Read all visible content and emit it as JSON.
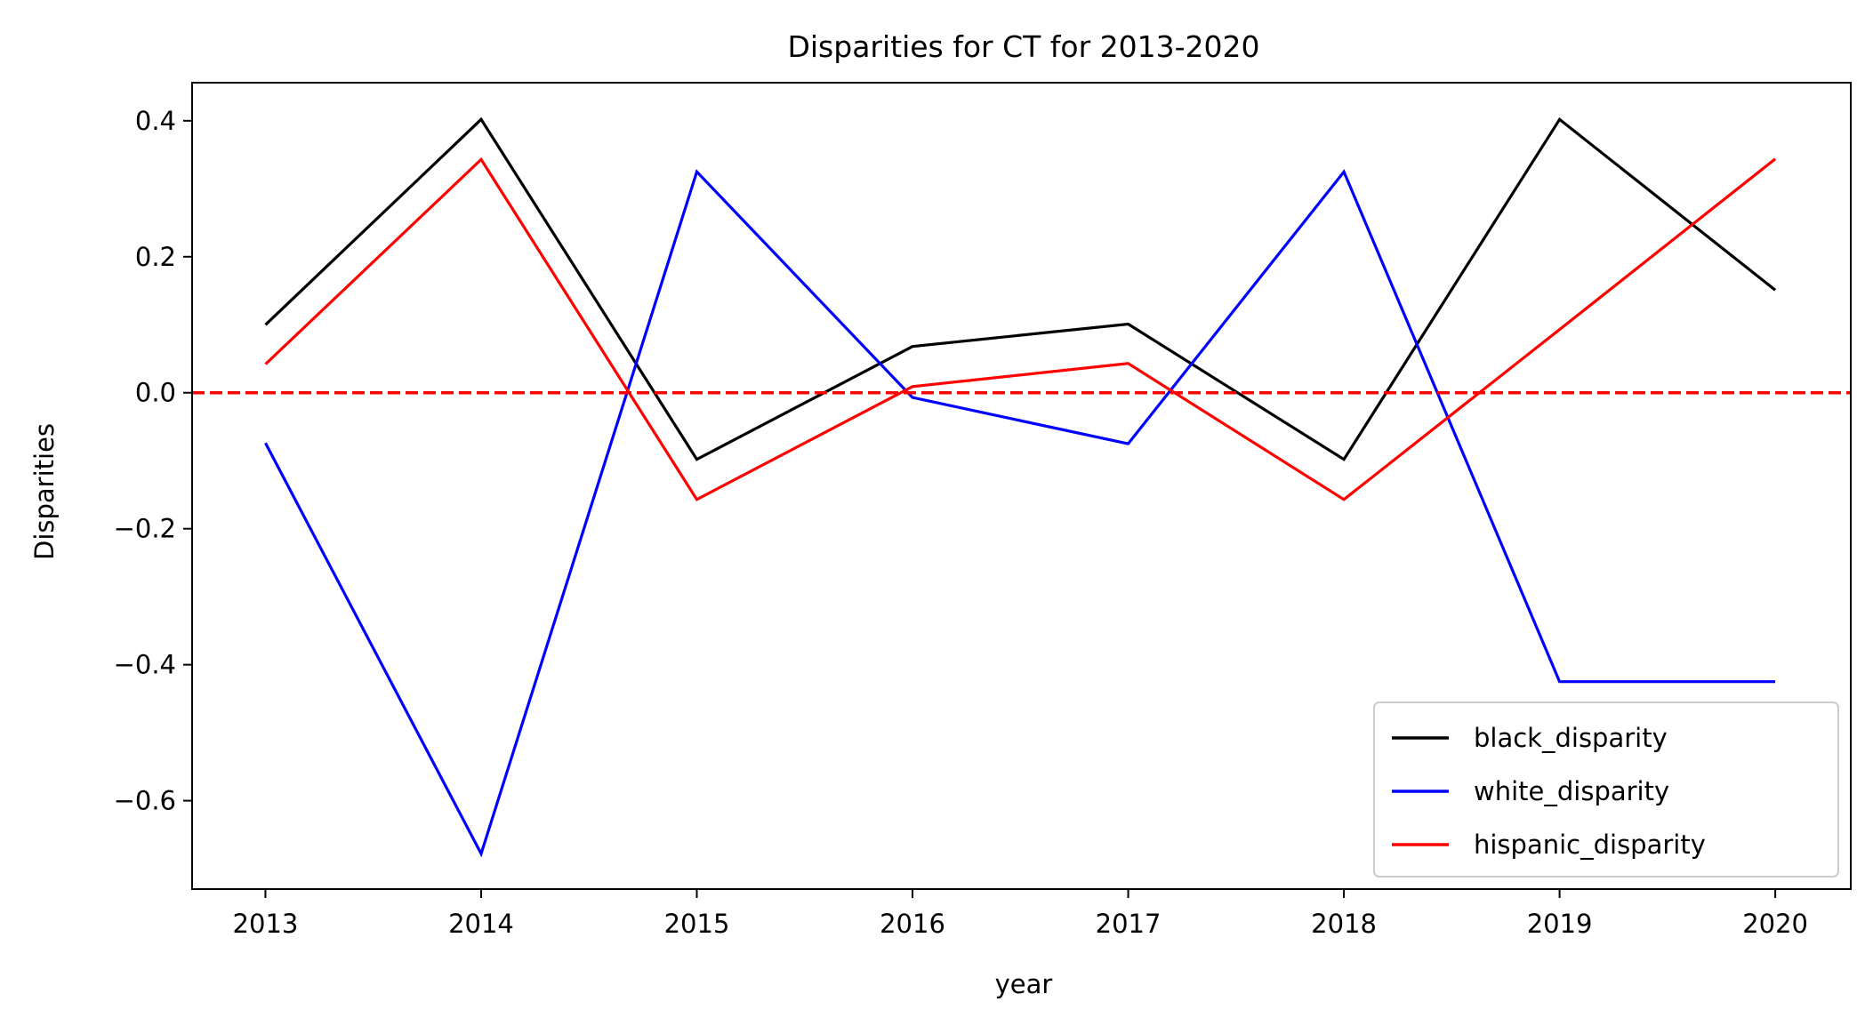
{
  "chart_data": {
    "type": "line",
    "title": "Disparities for CT for 2013-2020",
    "xlabel": "year",
    "ylabel": "Disparities",
    "x": [
      2013,
      2014,
      2015,
      2016,
      2017,
      2018,
      2019,
      2020
    ],
    "xlim": [
      2012.66,
      2020.35
    ],
    "ylim": [
      -0.73,
      0.456
    ],
    "yticks": [
      0.4,
      0.2,
      0.0,
      -0.2,
      -0.4,
      -0.6
    ],
    "ytick_labels": [
      "0.4",
      "0.2",
      "0.0",
      "−0.2",
      "−0.4",
      "−0.6"
    ],
    "xtick_labels": [
      "2013",
      "2014",
      "2015",
      "2016",
      "2017",
      "2018",
      "2019",
      "2020"
    ],
    "grid": false,
    "legend_position": "lower-right",
    "reference_line": {
      "y": 0.0,
      "style": "dashed",
      "color": "#ff0000"
    },
    "series": [
      {
        "name": "black_disparity",
        "color": "#000000",
        "values": [
          0.1,
          0.402,
          -0.098,
          0.068,
          0.101,
          -0.098,
          0.402,
          0.151
        ]
      },
      {
        "name": "white_disparity",
        "color": "#0000ff",
        "values": [
          -0.074,
          -0.678,
          0.325,
          -0.007,
          -0.075,
          0.325,
          -0.425,
          -0.425
        ]
      },
      {
        "name": "hispanic_disparity",
        "color": "#ff0000",
        "values": [
          0.042,
          0.343,
          -0.157,
          0.009,
          0.043,
          -0.157,
          0.093,
          0.344
        ]
      }
    ]
  }
}
